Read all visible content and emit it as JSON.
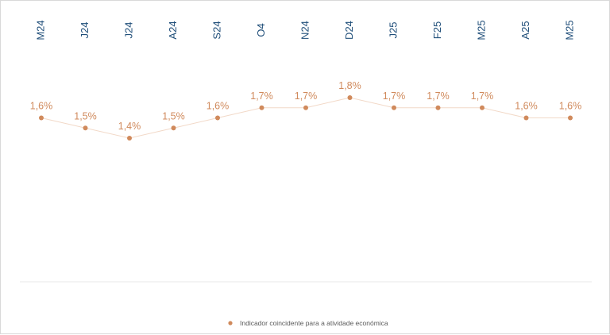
{
  "chart_data": {
    "type": "line",
    "categories": [
      "M24",
      "J24",
      "J24",
      "A24",
      "S24",
      "O4",
      "N24",
      "D24",
      "J25",
      "F25",
      "M25",
      "A25",
      "M25"
    ],
    "series": [
      {
        "name": "Indicador coincidente para a atividade económica",
        "values": [
          1.6,
          1.5,
          1.4,
          1.5,
          1.6,
          1.7,
          1.7,
          1.8,
          1.7,
          1.7,
          1.7,
          1.6,
          1.6
        ],
        "labels": [
          "1,6%",
          "1,5%",
          "1,4%",
          "1,5%",
          "1,6%",
          "1,7%",
          "1,7%",
          "1,8%",
          "1,7%",
          "1,7%",
          "1,7%",
          "1,6%",
          "1,6%"
        ],
        "color": "#d08a5c"
      }
    ],
    "category_axis_position": "top",
    "category_label_orientation": "vertical",
    "legend_position": "bottom",
    "gridlines": false,
    "colors": {
      "axis_labels": "#1f4e79",
      "series": "#d08a5c",
      "line": "#f2d9c8",
      "baseline": "#e8e8e8"
    }
  }
}
